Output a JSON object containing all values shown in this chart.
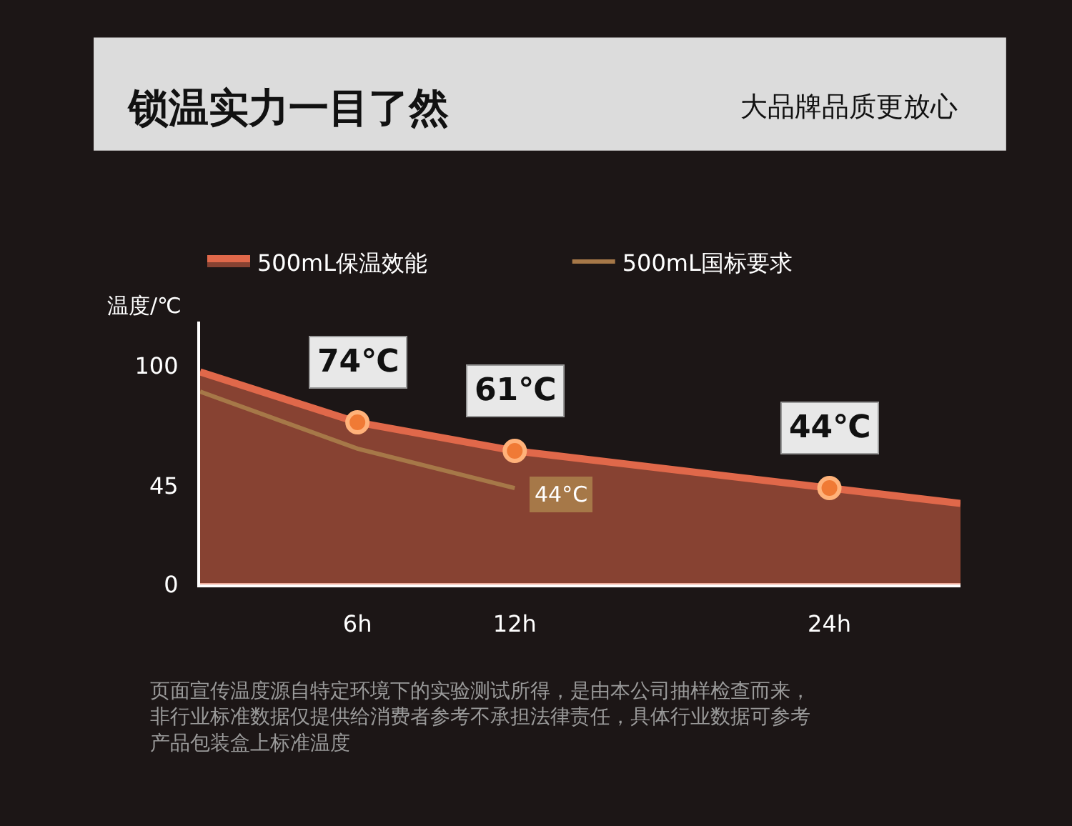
{
  "chart_data": {
    "type": "area",
    "title": "锁温实力一目了然",
    "subtitle": "大品牌品质更放心",
    "ylabel": "温度/℃",
    "xlim": [
      0,
      29
    ],
    "xticks": [
      {
        "value": 6,
        "label": "6h"
      },
      {
        "value": 12,
        "label": "12h"
      },
      {
        "value": 24,
        "label": "24h"
      }
    ],
    "ylim": [
      0,
      120
    ],
    "yticks": [
      0,
      45,
      100
    ],
    "series": [
      {
        "name": "500mL保温效能",
        "color": "#e0684a",
        "x": [
          0,
          6,
          12,
          24,
          29
        ],
        "values": [
          97,
          74,
          61,
          44,
          37
        ],
        "marker": "none"
      },
      {
        "name": "500mL国标要求",
        "type": "line",
        "color": "#a67848",
        "x": [
          0,
          6,
          12
        ],
        "values": [
          88,
          62,
          44
        ],
        "value_labels": [
          null,
          null,
          "44°C"
        ],
        "marker": "none"
      },
      {
        "type": "scatter",
        "color": "#f07a35",
        "x": [
          6,
          12,
          24
        ],
        "values": [
          74,
          61,
          44
        ],
        "value_labels": [
          "74℃",
          "61℃",
          "44℃"
        ],
        "marker": "circle"
      }
    ],
    "legend": "top left",
    "grid": false,
    "annotations": [
      "页面宣传温度源自特定环境下的实验测试所得，是由本公司抽样检查而来，非行业标准数据仅提供给消费者参考不承担法律责任，具体行业数据可参考产品包装盒上标准温度"
    ]
  }
}
